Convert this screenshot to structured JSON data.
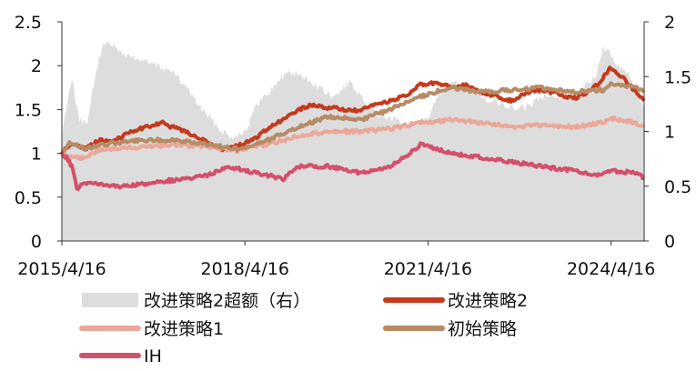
{
  "chart_data": {
    "type": "line",
    "x_ticks": [
      "2015/4/16",
      "2018/4/16",
      "2021/4/16",
      "2024/4/16"
    ],
    "x_range": [
      "2015/4/16",
      "2024/10/31"
    ],
    "y_left": {
      "ylim": [
        0,
        2.5
      ],
      "ticks": [
        "0",
        "0.5",
        "1",
        "1.5",
        "2",
        "2.5"
      ]
    },
    "y_right": {
      "ylim": [
        0,
        2
      ],
      "ticks": [
        "0",
        "0.5",
        "1",
        "1.5",
        "2"
      ]
    },
    "grid": false,
    "legend_placement": "bottom",
    "series": [
      {
        "name": "改进策略2超额（右）",
        "type": "area",
        "axis": "right",
        "color": "#dddddd",
        "points": [
          [
            "2015/4/16",
            0.95
          ],
          [
            "2015/5/15",
            1.25
          ],
          [
            "2015/6/15",
            1.5
          ],
          [
            "2015/7/15",
            1.2
          ],
          [
            "2015/8/15",
            1.05
          ],
          [
            "2015/9/15",
            1.1
          ],
          [
            "2015/10/15",
            1.35
          ],
          [
            "2015/11/15",
            1.6
          ],
          [
            "2015/12/15",
            1.75
          ],
          [
            "2016/1/15",
            1.85
          ],
          [
            "2016/3/1",
            1.75
          ],
          [
            "2016/5/1",
            1.7
          ],
          [
            "2016/8/1",
            1.65
          ],
          [
            "2016/11/1",
            1.6
          ],
          [
            "2017/2/1",
            1.55
          ],
          [
            "2017/5/1",
            1.4
          ],
          [
            "2017/8/1",
            1.2
          ],
          [
            "2017/11/1",
            1.05
          ],
          [
            "2018/1/15",
            0.95
          ],
          [
            "2018/4/16",
            1.0
          ],
          [
            "2018/7/1",
            1.25
          ],
          [
            "2018/10/1",
            1.4
          ],
          [
            "2019/1/1",
            1.55
          ],
          [
            "2019/4/1",
            1.5
          ],
          [
            "2019/7/1",
            1.4
          ],
          [
            "2019/10/1",
            1.3
          ],
          [
            "2020/1/1",
            1.45
          ],
          [
            "2020/4/1",
            1.25
          ],
          [
            "2020/7/1",
            1.15
          ],
          [
            "2020/10/1",
            1.1
          ],
          [
            "2021/1/1",
            1.05
          ],
          [
            "2021/4/16",
            1.15
          ],
          [
            "2021/7/1",
            1.35
          ],
          [
            "2021/10/1",
            1.45
          ],
          [
            "2022/1/1",
            1.4
          ],
          [
            "2022/4/1",
            1.3
          ],
          [
            "2022/7/1",
            1.25
          ],
          [
            "2022/10/1",
            1.2
          ],
          [
            "2023/1/1",
            1.25
          ],
          [
            "2023/4/1",
            1.35
          ],
          [
            "2023/7/1",
            1.3
          ],
          [
            "2023/10/1",
            1.35
          ],
          [
            "2024/1/15",
            1.5
          ],
          [
            "2024/3/1",
            1.75
          ],
          [
            "2024/4/16",
            1.7
          ],
          [
            "2024/6/1",
            1.6
          ],
          [
            "2024/8/1",
            1.5
          ],
          [
            "2024/10/31",
            1.2
          ]
        ]
      },
      {
        "name": "改进策略2",
        "type": "line",
        "axis": "left",
        "color": "#c43a1e",
        "points": [
          [
            "2015/4/16",
            1.0
          ],
          [
            "2015/6/1",
            1.1
          ],
          [
            "2015/9/1",
            1.05
          ],
          [
            "2015/12/1",
            1.15
          ],
          [
            "2016/3/1",
            1.15
          ],
          [
            "2016/6/1",
            1.25
          ],
          [
            "2016/9/1",
            1.3
          ],
          [
            "2016/12/1",
            1.35
          ],
          [
            "2017/3/1",
            1.28
          ],
          [
            "2017/6/1",
            1.22
          ],
          [
            "2017/9/1",
            1.12
          ],
          [
            "2017/12/1",
            1.05
          ],
          [
            "2018/3/1",
            1.08
          ],
          [
            "2018/6/1",
            1.15
          ],
          [
            "2018/9/1",
            1.28
          ],
          [
            "2018/12/1",
            1.38
          ],
          [
            "2019/3/1",
            1.5
          ],
          [
            "2019/6/1",
            1.55
          ],
          [
            "2019/9/1",
            1.52
          ],
          [
            "2019/12/1",
            1.5
          ],
          [
            "2020/3/1",
            1.48
          ],
          [
            "2020/6/1",
            1.55
          ],
          [
            "2020/9/1",
            1.6
          ],
          [
            "2020/12/1",
            1.65
          ],
          [
            "2021/3/1",
            1.78
          ],
          [
            "2021/6/1",
            1.8
          ],
          [
            "2021/9/1",
            1.75
          ],
          [
            "2021/12/1",
            1.78
          ],
          [
            "2022/3/1",
            1.7
          ],
          [
            "2022/6/1",
            1.65
          ],
          [
            "2022/9/1",
            1.6
          ],
          [
            "2022/12/1",
            1.7
          ],
          [
            "2023/3/1",
            1.72
          ],
          [
            "2023/6/1",
            1.68
          ],
          [
            "2023/9/1",
            1.62
          ],
          [
            "2023/12/1",
            1.7
          ],
          [
            "2024/2/1",
            1.8
          ],
          [
            "2024/4/16",
            1.98
          ],
          [
            "2024/7/1",
            1.85
          ],
          [
            "2024/9/1",
            1.72
          ],
          [
            "2024/10/31",
            1.6
          ]
        ]
      },
      {
        "name": "改进策略1",
        "type": "line",
        "axis": "left",
        "color": "#eaa89a",
        "points": [
          [
            "2015/4/16",
            1.0
          ],
          [
            "2015/6/1",
            0.95
          ],
          [
            "2015/9/1",
            0.95
          ],
          [
            "2015/12/1",
            1.05
          ],
          [
            "2016/3/1",
            1.05
          ],
          [
            "2016/9/1",
            1.08
          ],
          [
            "2017/3/1",
            1.1
          ],
          [
            "2017/9/1",
            1.08
          ],
          [
            "2018/3/1",
            1.03
          ],
          [
            "2018/9/1",
            1.1
          ],
          [
            "2019/3/1",
            1.2
          ],
          [
            "2019/9/1",
            1.25
          ],
          [
            "2020/3/1",
            1.25
          ],
          [
            "2020/9/1",
            1.28
          ],
          [
            "2021/3/1",
            1.35
          ],
          [
            "2021/9/1",
            1.38
          ],
          [
            "2022/3/1",
            1.35
          ],
          [
            "2022/9/1",
            1.3
          ],
          [
            "2023/3/1",
            1.32
          ],
          [
            "2023/9/1",
            1.3
          ],
          [
            "2024/3/1",
            1.35
          ],
          [
            "2024/4/16",
            1.4
          ],
          [
            "2024/9/1",
            1.35
          ],
          [
            "2024/10/31",
            1.32
          ]
        ]
      },
      {
        "name": "初始策略",
        "type": "line",
        "axis": "left",
        "color": "#b68c66",
        "points": [
          [
            "2015/4/16",
            1.0
          ],
          [
            "2015/6/1",
            1.12
          ],
          [
            "2015/9/1",
            1.05
          ],
          [
            "2015/12/1",
            1.1
          ],
          [
            "2016/3/1",
            1.12
          ],
          [
            "2016/9/1",
            1.15
          ],
          [
            "2017/3/1",
            1.15
          ],
          [
            "2017/9/1",
            1.1
          ],
          [
            "2018/3/1",
            1.05
          ],
          [
            "2018/9/1",
            1.15
          ],
          [
            "2019/3/1",
            1.3
          ],
          [
            "2019/9/1",
            1.42
          ],
          [
            "2020/3/1",
            1.38
          ],
          [
            "2020/9/1",
            1.5
          ],
          [
            "2021/3/1",
            1.65
          ],
          [
            "2021/9/1",
            1.75
          ],
          [
            "2022/3/1",
            1.7
          ],
          [
            "2022/9/1",
            1.72
          ],
          [
            "2023/3/1",
            1.75
          ],
          [
            "2023/9/1",
            1.7
          ],
          [
            "2024/3/1",
            1.72
          ],
          [
            "2024/4/16",
            1.8
          ],
          [
            "2024/9/1",
            1.75
          ],
          [
            "2024/10/31",
            1.72
          ]
        ]
      },
      {
        "name": "IH",
        "type": "line",
        "axis": "left",
        "color": "#d4506a",
        "points": [
          [
            "2015/4/16",
            1.0
          ],
          [
            "2015/5/15",
            0.95
          ],
          [
            "2015/6/15",
            0.85
          ],
          [
            "2015/7/15",
            0.6
          ],
          [
            "2015/9/1",
            0.65
          ],
          [
            "2015/12/1",
            0.65
          ],
          [
            "2016/3/1",
            0.62
          ],
          [
            "2016/9/1",
            0.65
          ],
          [
            "2017/3/1",
            0.7
          ],
          [
            "2017/9/1",
            0.75
          ],
          [
            "2018/1/15",
            0.85
          ],
          [
            "2018/4/16",
            0.8
          ],
          [
            "2018/9/1",
            0.75
          ],
          [
            "2018/12/1",
            0.7
          ],
          [
            "2019/3/1",
            0.85
          ],
          [
            "2019/9/1",
            0.85
          ],
          [
            "2020/3/1",
            0.78
          ],
          [
            "2020/9/1",
            0.85
          ],
          [
            "2021/1/1",
            1.0
          ],
          [
            "2021/3/1",
            1.1
          ],
          [
            "2021/6/1",
            1.05
          ],
          [
            "2021/9/1",
            1.0
          ],
          [
            "2022/3/1",
            0.95
          ],
          [
            "2022/9/1",
            0.9
          ],
          [
            "2023/3/1",
            0.85
          ],
          [
            "2023/9/1",
            0.8
          ],
          [
            "2024/1/15",
            0.75
          ],
          [
            "2024/4/16",
            0.8
          ],
          [
            "2024/9/1",
            0.78
          ],
          [
            "2024/10/31",
            0.72
          ]
        ]
      }
    ]
  }
}
